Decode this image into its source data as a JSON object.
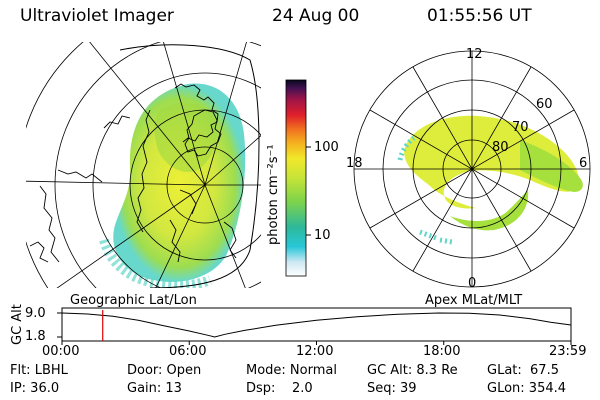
{
  "header": {
    "instrument": "Ultraviolet Imager",
    "date": "24 Aug 00",
    "time": "01:55:56 UT"
  },
  "geo_panel": {
    "label": "Geographic Lat/Lon"
  },
  "polar_panel": {
    "label": "Apex MLat/MLT",
    "mlt_labels": [
      "12",
      "18",
      "6",
      "0"
    ],
    "lat_labels": [
      "60",
      "70",
      "80"
    ]
  },
  "colorbar": {
    "unit_label": "photon cm⁻²s⁻¹",
    "ticks": [
      "100",
      "10"
    ]
  },
  "alt_plot": {
    "ylabel": "GC Alt",
    "ymax": "9.0",
    "ymin": "1.8",
    "x_ticks": [
      "00:00",
      "06:00",
      "12:00",
      "18:00",
      "23:59"
    ],
    "marker_time_fraction": 0.08,
    "track": [
      [
        0,
        9.0
      ],
      [
        0.05,
        8.7
      ],
      [
        0.1,
        8.0
      ],
      [
        0.15,
        6.8
      ],
      [
        0.2,
        5.2
      ],
      [
        0.25,
        3.6
      ],
      [
        0.29,
        2.2
      ],
      [
        0.3,
        1.8
      ],
      [
        0.32,
        2.6
      ],
      [
        0.36,
        3.8
      ],
      [
        0.42,
        5.3
      ],
      [
        0.5,
        6.8
      ],
      [
        0.58,
        7.9
      ],
      [
        0.66,
        8.6
      ],
      [
        0.74,
        9.0
      ],
      [
        0.8,
        8.9
      ],
      [
        0.86,
        8.4
      ],
      [
        0.92,
        7.3
      ],
      [
        0.96,
        6.2
      ],
      [
        1.0,
        5.4
      ]
    ]
  },
  "info": {
    "filter": "Flt: LBHL",
    "ip": "IP: 36.0",
    "door": "Door: Open",
    "gain": "Gain: 13",
    "mode": "Mode: Normal",
    "dsp": "Dsp:    2.0",
    "gc_alt": "GC Alt: 8.3 Re",
    "seq": "Seq: 39",
    "glat": "GLat:  67.5",
    "glon": "GLon: 354.4"
  },
  "colors": {
    "aurora_green": "#a6e03c",
    "aurora_yellow": "#e6ef2a",
    "aurora_cyan": "#5fd6c8",
    "marker_red": "#e00000"
  }
}
